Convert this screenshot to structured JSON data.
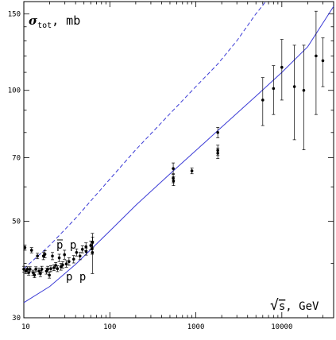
{
  "chart_data": {
    "type": "scatter",
    "title": "",
    "ylabel": "σ_tot, mb",
    "ylabel_parts": {
      "symbol": "σ",
      "subscript": "tot",
      "unit": ", mb"
    },
    "xlabel": "√s, GeV",
    "xlabel_parts": {
      "radical": "√",
      "symbol": "s",
      "unit": ", GeV"
    },
    "x_scale": "log",
    "y_scale": "log",
    "xlim": [
      10,
      40000
    ],
    "ylim": [
      30,
      160
    ],
    "x_ticks": [
      10,
      100,
      1000,
      10000
    ],
    "x_tick_labels": [
      "10",
      "100",
      "1000",
      "10000"
    ],
    "y_ticks": [
      30,
      50,
      70,
      100,
      150
    ],
    "y_tick_labels": [
      "30",
      "50",
      "70",
      "100",
      "150"
    ],
    "grid": false,
    "annotations": {
      "pbar_p": {
        "text": "p p",
        "bar_on_first": true,
        "x": 30,
        "y": 44.5
      },
      "p_p": {
        "text": "p p",
        "x": 37,
        "y": 38
      }
    },
    "series": [
      {
        "kind": "curve",
        "style": "solid",
        "color": "#3c3cd6",
        "x": [
          10,
          20,
          40,
          100,
          200,
          546,
          1000,
          1800,
          5000,
          10000,
          20000,
          40000
        ],
        "y": [
          32.5,
          35.4,
          39.8,
          47.5,
          54.4,
          65.3,
          72.7,
          80.8,
          97.0,
          110.0,
          126.0,
          156.0
        ]
      },
      {
        "kind": "curve",
        "style": "dashed",
        "color": "#3c3cd6",
        "x": [
          10,
          20,
          40,
          100,
          200,
          546,
          1000,
          1800,
          3000,
          5000,
          6500
        ],
        "y": [
          38.9,
          44.0,
          50.8,
          62.5,
          73.0,
          90.0,
          102.0,
          115.0,
          130.0,
          150.0,
          160.0
        ]
      },
      {
        "kind": "points",
        "color": "#000000",
        "points": [
          {
            "x": 10.0,
            "y": 38.8,
            "err": 0.6
          },
          {
            "x": 10.3,
            "y": 43.5,
            "err": 0.6
          },
          {
            "x": 10.6,
            "y": 38.4,
            "err": 0.5
          },
          {
            "x": 11.0,
            "y": 38.8,
            "err": 0.5
          },
          {
            "x": 11.4,
            "y": 38.1,
            "err": 0.5
          },
          {
            "x": 11.8,
            "y": 38.8,
            "err": 0.5
          },
          {
            "x": 12.3,
            "y": 42.9,
            "err": 0.6
          },
          {
            "x": 12.8,
            "y": 38.1,
            "err": 0.5
          },
          {
            "x": 13.3,
            "y": 37.6,
            "err": 0.5
          },
          {
            "x": 13.8,
            "y": 38.8,
            "err": 0.5
          },
          {
            "x": 14.4,
            "y": 41.6,
            "err": 0.6
          },
          {
            "x": 15.0,
            "y": 38.4,
            "err": 0.6
          },
          {
            "x": 15.6,
            "y": 37.9,
            "err": 0.6
          },
          {
            "x": 16.2,
            "y": 38.8,
            "err": 0.6
          },
          {
            "x": 16.9,
            "y": 41.6,
            "err": 0.8
          },
          {
            "x": 17.6,
            "y": 42.0,
            "err": 0.8
          },
          {
            "x": 18.3,
            "y": 38.4,
            "err": 0.6
          },
          {
            "x": 19.0,
            "y": 38.8,
            "err": 0.6
          },
          {
            "x": 19.8,
            "y": 37.6,
            "err": 0.6
          },
          {
            "x": 20.6,
            "y": 38.9,
            "err": 0.6
          },
          {
            "x": 21.5,
            "y": 41.6,
            "err": 0.8
          },
          {
            "x": 22.4,
            "y": 39.1,
            "err": 0.6
          },
          {
            "x": 23.5,
            "y": 39.6,
            "err": 0.6
          },
          {
            "x": 24.6,
            "y": 38.9,
            "err": 0.6
          },
          {
            "x": 25.8,
            "y": 41.2,
            "err": 0.8
          },
          {
            "x": 27.0,
            "y": 39.3,
            "err": 0.7
          },
          {
            "x": 28.3,
            "y": 39.7,
            "err": 0.7
          },
          {
            "x": 29.7,
            "y": 41.9,
            "err": 1.0
          },
          {
            "x": 31.2,
            "y": 39.9,
            "err": 0.7
          },
          {
            "x": 33.5,
            "y": 40.4,
            "err": 0.8
          },
          {
            "x": 38.0,
            "y": 40.9,
            "err": 0.8
          },
          {
            "x": 41.0,
            "y": 42.4,
            "err": 0.8
          },
          {
            "x": 45.0,
            "y": 41.6,
            "err": 0.8
          },
          {
            "x": 48.0,
            "y": 43.1,
            "err": 0.8
          },
          {
            "x": 52.8,
            "y": 43.7,
            "err": 0.9
          },
          {
            "x": 53.0,
            "y": 42.6,
            "err": 0.8
          },
          {
            "x": 60.0,
            "y": 44.0,
            "err": 1.0
          },
          {
            "x": 62.3,
            "y": 43.2,
            "err": 1.2
          },
          {
            "x": 62.7,
            "y": 42.4,
            "err": 4.5
          },
          {
            "x": 63.0,
            "y": 44.8,
            "err": 1.2
          },
          {
            "x": 546,
            "y": 66.1,
            "err": 2.0
          },
          {
            "x": 546,
            "y": 62.8,
            "err": 1.5
          },
          {
            "x": 550,
            "y": 61.9,
            "err": 1.5
          },
          {
            "x": 900,
            "y": 65.3,
            "err": 1.0
          },
          {
            "x": 1800,
            "y": 80.0,
            "err": 2.2
          },
          {
            "x": 1800,
            "y": 72.8,
            "err": 2.0
          },
          {
            "x": 1800,
            "y": 71.7,
            "err": 2.0
          },
          {
            "x": 6000,
            "y": 95.0,
            "err": 12.0
          },
          {
            "x": 8000,
            "y": 101.0,
            "err": 13.0
          },
          {
            "x": 10000,
            "y": 113.0,
            "err": 18.0
          },
          {
            "x": 14000,
            "y": 102.0,
            "err": 25.0
          },
          {
            "x": 18000,
            "y": 100.0,
            "err": 27.0
          },
          {
            "x": 25000,
            "y": 120.0,
            "err": 32.0
          },
          {
            "x": 30000,
            "y": 117.0,
            "err": 15.0
          }
        ]
      }
    ]
  }
}
